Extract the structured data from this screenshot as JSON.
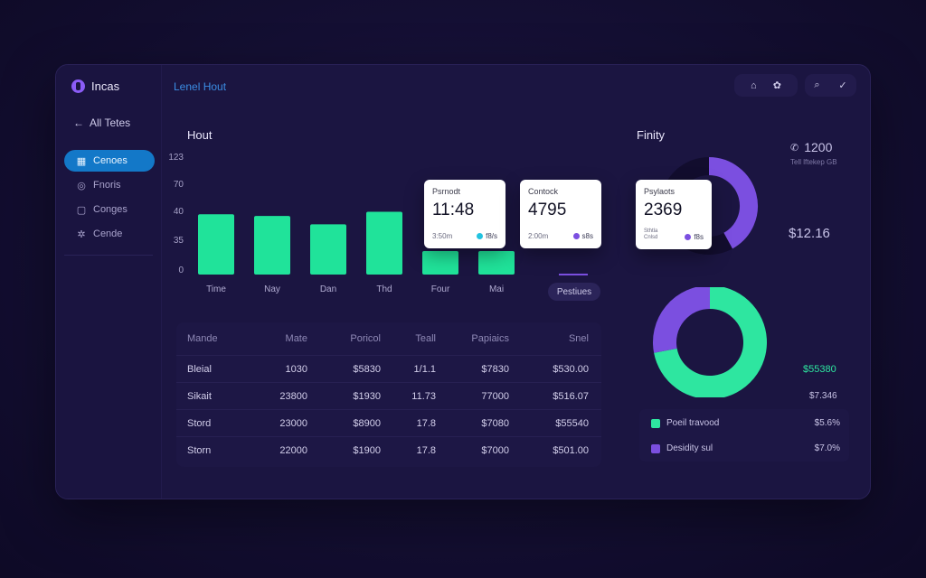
{
  "app": {
    "name": "Incas",
    "title": "Lenel Hout"
  },
  "sidebar": {
    "back_label": "All Tetes",
    "items": [
      {
        "label": "Cenoes",
        "icon": "grid-icon",
        "active": true
      },
      {
        "label": "Fnoris",
        "icon": "globe-icon",
        "active": false
      },
      {
        "label": "Conges",
        "icon": "chat-icon",
        "active": false
      },
      {
        "label": "Cende",
        "icon": "gear-icon",
        "active": false
      }
    ]
  },
  "topbar": {
    "icons": [
      "home-icon",
      "settings-icon",
      "search-icon",
      "chevron-down-icon"
    ]
  },
  "bar_chart_section": {
    "title": "Hout"
  },
  "chart_data": {
    "type": "bar",
    "categories": [
      "Time",
      "Nay",
      "Dan",
      "Thd",
      "Four",
      "Mai"
    ],
    "values": [
      72,
      70,
      60,
      75,
      28,
      28
    ],
    "yticks": [
      "0",
      "35",
      "40",
      "70",
      "123"
    ],
    "ylim": [
      0,
      123
    ],
    "xlabel": "",
    "ylabel": "",
    "legend": "Pestiues",
    "bar_color": "#20e39a"
  },
  "cards": [
    {
      "label": "Psrnodt",
      "value": "11:48",
      "foot": "3:50m",
      "badge": "f8/s",
      "badge_color": "#22c3e0"
    },
    {
      "label": "Contock",
      "value": "4795",
      "foot": "2:00m",
      "badge": "s8s",
      "badge_color": "#7b4fe0"
    },
    {
      "label": "Psylaots",
      "value": "2369",
      "foot": "Sthtla\nCnlsd",
      "badge": "f8s",
      "badge_color": "#7b4fe0"
    }
  ],
  "table": {
    "headers": [
      "Mande",
      "Mate",
      "Poricol",
      "Teall",
      "Papiaics",
      "Snel"
    ],
    "rows": [
      [
        "Bleial",
        "1030",
        "$5830",
        "1/1.1",
        "$7830",
        "$530.00"
      ],
      [
        "Sikait",
        "23800",
        "$1930",
        "11.73",
        "77000",
        "$516.07"
      ],
      [
        "Stord",
        "23000",
        "$8900",
        "17.8",
        "$7080",
        "$55540"
      ],
      [
        "Storn",
        "22000",
        "$1900",
        "17.8",
        "$7000",
        "$501.00"
      ]
    ]
  },
  "finity_section": {
    "title": "Finity"
  },
  "stats": {
    "top_value": "1200",
    "top_sub": "Tell lftekep GB",
    "mid_value": "$12.16",
    "green_value": "$55380",
    "small_value": "$7.346"
  },
  "donut_top": {
    "purple_fraction": 0.42,
    "color": "#7b4fe0"
  },
  "donut_bottom": {
    "green_fraction": 0.72,
    "purple_fraction": 0.28,
    "green_color": "#2ee6a0",
    "purple_color": "#7b4fe0"
  },
  "legend_box": {
    "items": [
      {
        "label": "Poeil travood",
        "value": "$5.6%",
        "color": "#2ee6a0"
      },
      {
        "label": "Desidity sul",
        "value": "$7.0%",
        "color": "#7b4fe0"
      }
    ]
  }
}
